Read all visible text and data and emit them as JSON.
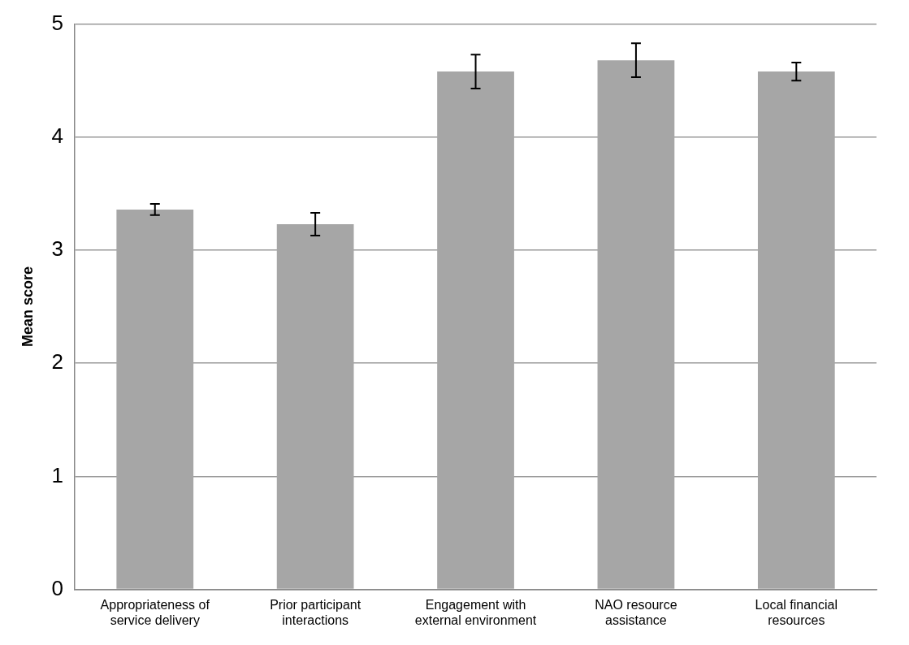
{
  "chart_data": {
    "type": "bar",
    "ylabel": "Mean score",
    "categories": [
      "Appropriateness of service delivery",
      "Prior participant interactions",
      "Engagement with external environment",
      "NAO resource assistance",
      "Local financial resources"
    ],
    "values": [
      3.36,
      3.23,
      4.58,
      4.68,
      4.58
    ],
    "errors": [
      0.05,
      0.1,
      0.15,
      0.15,
      0.08
    ],
    "color": "#a6a6a6",
    "ylim": [
      0,
      5
    ],
    "yticks": [
      0,
      1,
      2,
      3,
      4,
      5
    ],
    "grid": "y"
  }
}
